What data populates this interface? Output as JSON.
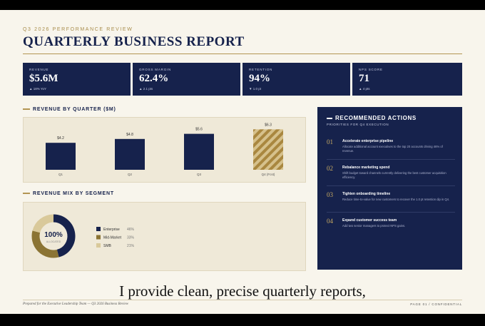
{
  "header": {
    "eyebrow": "Q3 2026 PERFORMANCE REVIEW",
    "title": "QUARTERLY BUSINESS REPORT"
  },
  "kpis": [
    {
      "label": "REVENUE",
      "value": "$5.6M",
      "delta": "▲ 18% YoY"
    },
    {
      "label": "GROSS MARGIN",
      "value": "62.4%",
      "delta": "▲ 2.1 pts"
    },
    {
      "label": "RETENTION",
      "value": "94%",
      "delta": "▼ 1.0 pt"
    },
    {
      "label": "NPS SCORE",
      "value": "71",
      "delta": "▲ 4 pts"
    }
  ],
  "revenue_by_quarter": {
    "type": "bar",
    "title": "REVENUE BY QUARTER ($M)",
    "categories": [
      "Q1",
      "Q2",
      "Q3",
      "Q4 (Fcst)"
    ],
    "values": [
      4.2,
      4.8,
      5.6,
      6.3
    ],
    "value_labels": [
      "$4.2",
      "$4.8",
      "$5.6",
      "$6.3"
    ],
    "colors": [
      "#16224c",
      "#16224c",
      "#16224c",
      "#b39552"
    ],
    "hatched": [
      false,
      false,
      false,
      true
    ]
  },
  "revenue_mix": {
    "type": "donut",
    "title": "REVENUE MIX BY SEGMENT",
    "center_value": "100%",
    "center_label": "ALLOCATED",
    "categories": [
      "Enterprise",
      "Mid-Market",
      "SMB"
    ],
    "values": [
      46,
      33,
      21
    ],
    "value_labels": [
      "46%",
      "33%",
      "21%"
    ],
    "colors": [
      "#16224c",
      "#8b7434",
      "#d9c99a"
    ]
  },
  "actions": {
    "title": "RECOMMENDED ACTIONS",
    "subtitle": "PRIORITIES FOR Q4 EXECUTION",
    "items": [
      {
        "number": "01",
        "title": "Accelerate enterprise pipeline",
        "text": "Allocate additional account executives to the top 20 accounts driving 46% of revenue."
      },
      {
        "number": "02",
        "title": "Rebalance marketing spend",
        "text": "Shift budget toward channels currently delivering the best customer acquisition efficiency."
      },
      {
        "number": "03",
        "title": "Tighten onboarding timeline",
        "text": "Reduce time-to-value for new customers to recover the 1.0 pt retention dip in Q4."
      },
      {
        "number": "04",
        "title": "Expand customer success team",
        "text": "Add two senior managers to protect NPS gains."
      }
    ]
  },
  "caption": "I provide clean, precise quarterly reports,",
  "footer": {
    "left": "Prepared for the Executive Leadership Team — Q3 2026 Business Review",
    "right": "PAGE 01 / CONFIDENTIAL"
  }
}
